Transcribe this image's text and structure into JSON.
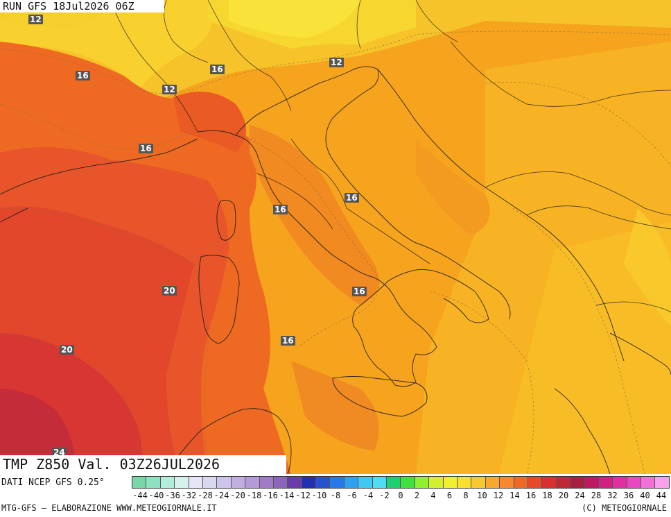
{
  "header": {
    "run_label": "RUN GFS 18Jul2026 06Z"
  },
  "map": {
    "variable_title": "TMP Z850 Val. 03Z26JUL2026",
    "isotherm_labels": [
      "12",
      "12",
      "12",
      "16",
      "16",
      "16",
      "16",
      "16",
      "16",
      "16",
      "20",
      "20",
      "24"
    ]
  },
  "legend": {
    "source": "DATI NCEP GFS 0.25°",
    "ticks": [
      "-44",
      "-40",
      "-36",
      "-32",
      "-28",
      "-24",
      "-20",
      "-18",
      "-16",
      "-14",
      "-12",
      "-10",
      "-8",
      "-6",
      "-4",
      "-2",
      "0",
      "2",
      "4",
      "6",
      "8",
      "10",
      "12",
      "14",
      "16",
      "18",
      "20",
      "24",
      "28",
      "32",
      "36",
      "40",
      "44"
    ],
    "colors": [
      "#7ad6a8",
      "#8fe0c0",
      "#b4ecdc",
      "#d5f3ec",
      "#e6e6f5",
      "#d8d8f0",
      "#ccc4ea",
      "#c0aee0",
      "#b49ad6",
      "#a07cc8",
      "#8c64bc",
      "#6a3ca8",
      "#2030b0",
      "#2850d0",
      "#2878e8",
      "#30a0f0",
      "#40c8f0",
      "#50dcf0",
      "#20d070",
      "#40e040",
      "#90f030",
      "#d0f030",
      "#f0f030",
      "#f8e030",
      "#f8c830",
      "#f8a830",
      "#f88830",
      "#f06828",
      "#e84828",
      "#d83030",
      "#c02838",
      "#a82040",
      "#c01860",
      "#d02080",
      "#e030a0",
      "#e848c0",
      "#f070d8",
      "#f8a0e8"
    ],
    "footer_left": "MTG-GFS — ELABORAZIONE WWW.METEOGIORNALE.IT",
    "footer_right": "(C) METEOGIORNALE"
  }
}
